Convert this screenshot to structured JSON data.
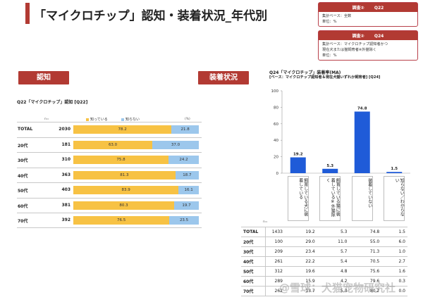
{
  "title": "「マイクロチップ」認知・装着状況_年代別",
  "notes": [
    {
      "badge": "調査②",
      "code": "Q22",
      "lines": [
        "集計ベース：全数",
        "単位：%"
      ]
    },
    {
      "badge": "調査②",
      "code": "Q24",
      "lines": [
        "集計ベース：マイクロチップ認知者かつ",
        "現在犬または猫飼育者※外猫除く",
        "単位：%"
      ]
    }
  ],
  "left_section": {
    "button": "認知",
    "subtitle": "Q22「マイクロチップ」認知 [Q22]",
    "n_label": "n=",
    "pct_label": "(%)",
    "legend": [
      "知っている",
      "知らない"
    ],
    "colors": {
      "know": "#f7c244",
      "dont": "#9cc7ec"
    }
  },
  "right_section": {
    "button": "装着状況",
    "subtitle": "Q24「マイクロチップ」装着率(MA)",
    "subtitle2": "[ベース：マイクロチップ認知者＆現在犬猫いずれか飼育者] [Q24]",
    "n_label": "n=",
    "categories_vertical": [
      "飼育している犬に装着している",
      "飼育している猫に装着している※外猫除く",
      "装着していない",
      "知らない／わからない"
    ]
  },
  "chart_data": [
    {
      "type": "bar",
      "orientation": "horizontal-stacked",
      "title": "Q22「マイクロチップ」認知 [Q22]",
      "unit": "%",
      "categories": [
        "TOTAL",
        "20代",
        "30代",
        "40代",
        "50代",
        "60代",
        "70代"
      ],
      "n": [
        2030,
        181,
        310,
        363,
        403,
        381,
        392
      ],
      "series": [
        {
          "name": "知っている",
          "values": [
            78.2,
            63.0,
            75.8,
            81.3,
            83.9,
            80.3,
            76.5
          ]
        },
        {
          "name": "知らない",
          "values": [
            21.8,
            37.0,
            24.2,
            18.7,
            16.1,
            19.7,
            23.5
          ]
        }
      ]
    },
    {
      "type": "bar",
      "title": "Q24「マイクロチップ」装着率(MA)",
      "categories": [
        "飼育している犬に装着している",
        "飼育している猫に装着している※外猫除く",
        "装着していない",
        "知らない／わからない"
      ],
      "values": [
        19.2,
        5.3,
        74.8,
        1.5
      ],
      "ylim": [
        0,
        100
      ],
      "yticks": [
        0,
        20,
        40,
        60,
        80,
        100
      ],
      "color": "#1f5bd8",
      "table": {
        "rows": [
          "TOTAL",
          "20代",
          "30代",
          "40代",
          "50代",
          "60代",
          "70代"
        ],
        "n": [
          1433,
          100,
          209,
          261,
          312,
          289,
          262
        ],
        "values": [
          [
            19.2,
            5.3,
            74.8,
            1.5
          ],
          [
            29.0,
            11.0,
            55.0,
            6.0
          ],
          [
            23.4,
            5.7,
            71.3,
            1.0
          ],
          [
            22.2,
            5.4,
            70.5,
            2.7
          ],
          [
            19.6,
            4.8,
            75.6,
            1.6
          ],
          [
            15.9,
            4.2,
            79.6,
            0.3
          ],
          [
            13.7,
            5.3,
            80.2,
            0.0
          ]
        ]
      }
    }
  ],
  "watermark": "@雪球：犬猫宠物研究社"
}
